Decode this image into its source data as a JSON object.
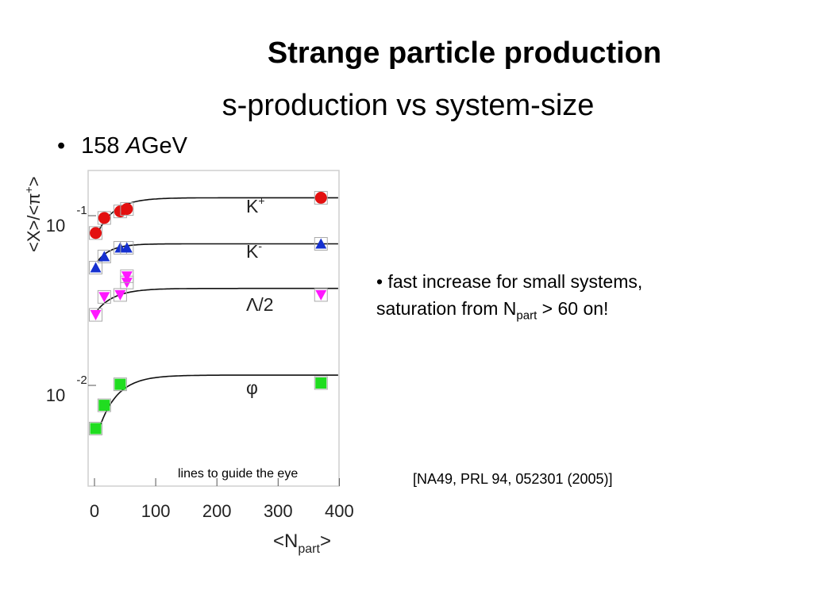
{
  "slide": {
    "title": "Strange particle production",
    "subtitle": "s-production vs system-size",
    "bullet_prefix": "158 ",
    "bullet_italic": "A",
    "bullet_suffix": "GeV",
    "note_line1": "• fast increase for small systems,",
    "note_line2_pre": "saturation from N",
    "note_line2_sub": "part",
    "note_line2_post": " > 60 on!",
    "reference": "[NA49, PRL 94, 052301 (2005)]",
    "guide_text": "lines to guide the eye"
  },
  "chart_data": {
    "type": "scatter",
    "xlabel": "<N",
    "xlabel_sub": "part",
    "xlabel_end": ">",
    "ylabel": "<X>/<π",
    "ylabel_sup": "+",
    "ylabel_end": ">",
    "xlim": [
      -10,
      400
    ],
    "x_ticks": [
      "0",
      "100",
      "200",
      "300",
      "400"
    ],
    "x_tick_values": [
      0,
      100,
      200,
      300,
      400
    ],
    "y_scale": "log",
    "y_tick_labels": [
      {
        "base": "10",
        "exp": "-1",
        "value": 0.1
      },
      {
        "base": "10",
        "exp": "-2",
        "value": 0.01
      }
    ],
    "series": [
      {
        "name": "K",
        "name_sup": "+",
        "marker": "circle",
        "color": "#e31010",
        "x": [
          2,
          16,
          42,
          53,
          370
        ],
        "y": [
          0.088,
          0.108,
          0.118,
          0.122,
          0.142
        ]
      },
      {
        "name": "K",
        "name_sup": "-",
        "marker": "triangle-up",
        "color": "#1530d0",
        "x": [
          2,
          16,
          42,
          53,
          370
        ],
        "y": [
          0.055,
          0.064,
          0.072,
          0.072,
          0.076
        ]
      },
      {
        "name": "Λ/2",
        "name_sup": "",
        "marker": "triangle-down",
        "color": "#ff18ff",
        "x": [
          2,
          16,
          42,
          53,
          53,
          370
        ],
        "y": [
          0.029,
          0.037,
          0.038,
          0.045,
          0.049,
          0.038
        ]
      },
      {
        "name": "φ",
        "name_sup": "",
        "marker": "square",
        "color": "#20dd20",
        "x": [
          2,
          16,
          42,
          370
        ],
        "y": [
          0.0062,
          0.0085,
          0.0113,
          0.0115
        ]
      }
    ]
  }
}
